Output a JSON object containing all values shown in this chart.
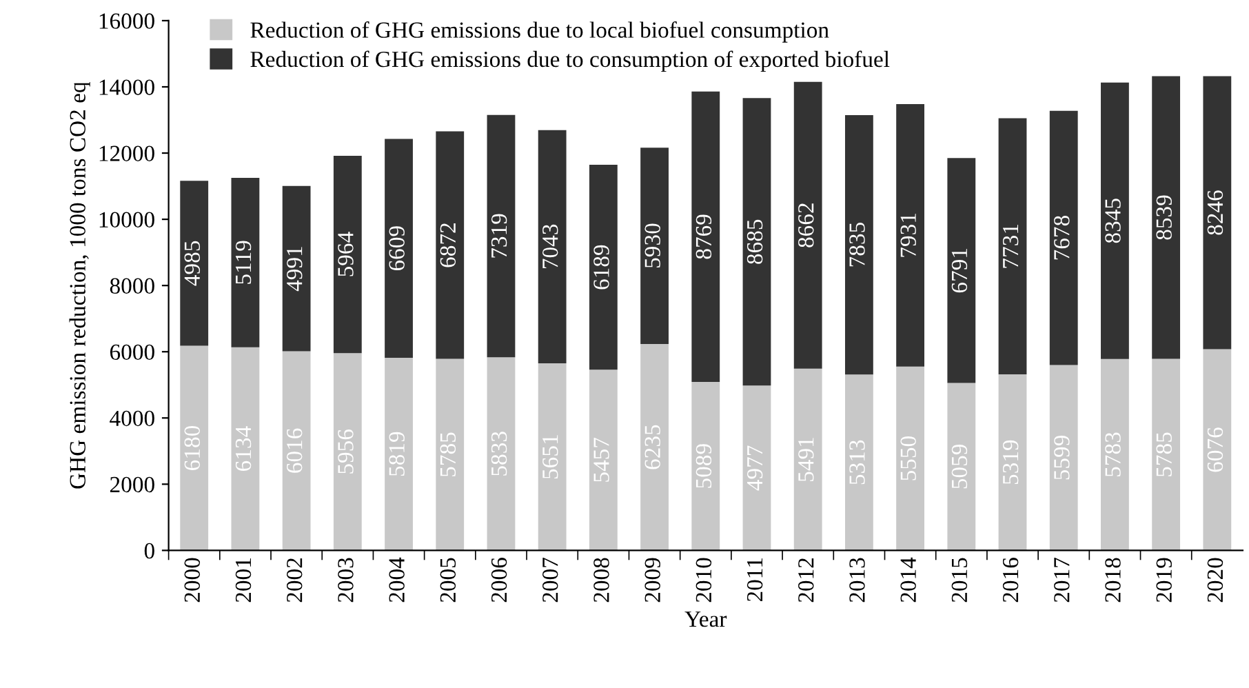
{
  "chart_data": {
    "type": "bar",
    "stacked": true,
    "xlabel": "Year",
    "ylabel": "GHG emission reduction, 1000 tons CO2 eq",
    "categories": [
      "2000",
      "2001",
      "2002",
      "2003",
      "2004",
      "2005",
      "2006",
      "2007",
      "2008",
      "2009",
      "2010",
      "2011",
      "2012",
      "2013",
      "2014",
      "2015",
      "2016",
      "2017",
      "2018",
      "2019",
      "2020"
    ],
    "series": [
      {
        "name": "Reduction of GHG emissions due to local biofuel consumption",
        "color": "#c8c8c8",
        "values": [
          6180,
          6134,
          6016,
          5956,
          5819,
          5785,
          5833,
          5651,
          5457,
          6235,
          5089,
          4977,
          5491,
          5313,
          5550,
          5059,
          5319,
          5599,
          5783,
          5785,
          6076
        ]
      },
      {
        "name": "Reduction of GHG emissions due to consumption of exported biofuel",
        "color": "#333333",
        "values": [
          4985,
          5119,
          4991,
          5964,
          6609,
          6872,
          7319,
          7043,
          6189,
          5930,
          8769,
          8685,
          8662,
          7835,
          7931,
          6791,
          7731,
          7678,
          8345,
          8539,
          8246
        ]
      }
    ],
    "ylim": [
      0,
      16000
    ],
    "yticks": [
      0,
      2000,
      4000,
      6000,
      8000,
      10000,
      12000,
      14000,
      16000
    ],
    "data_labels": true,
    "grid": false,
    "legend": "top left"
  }
}
